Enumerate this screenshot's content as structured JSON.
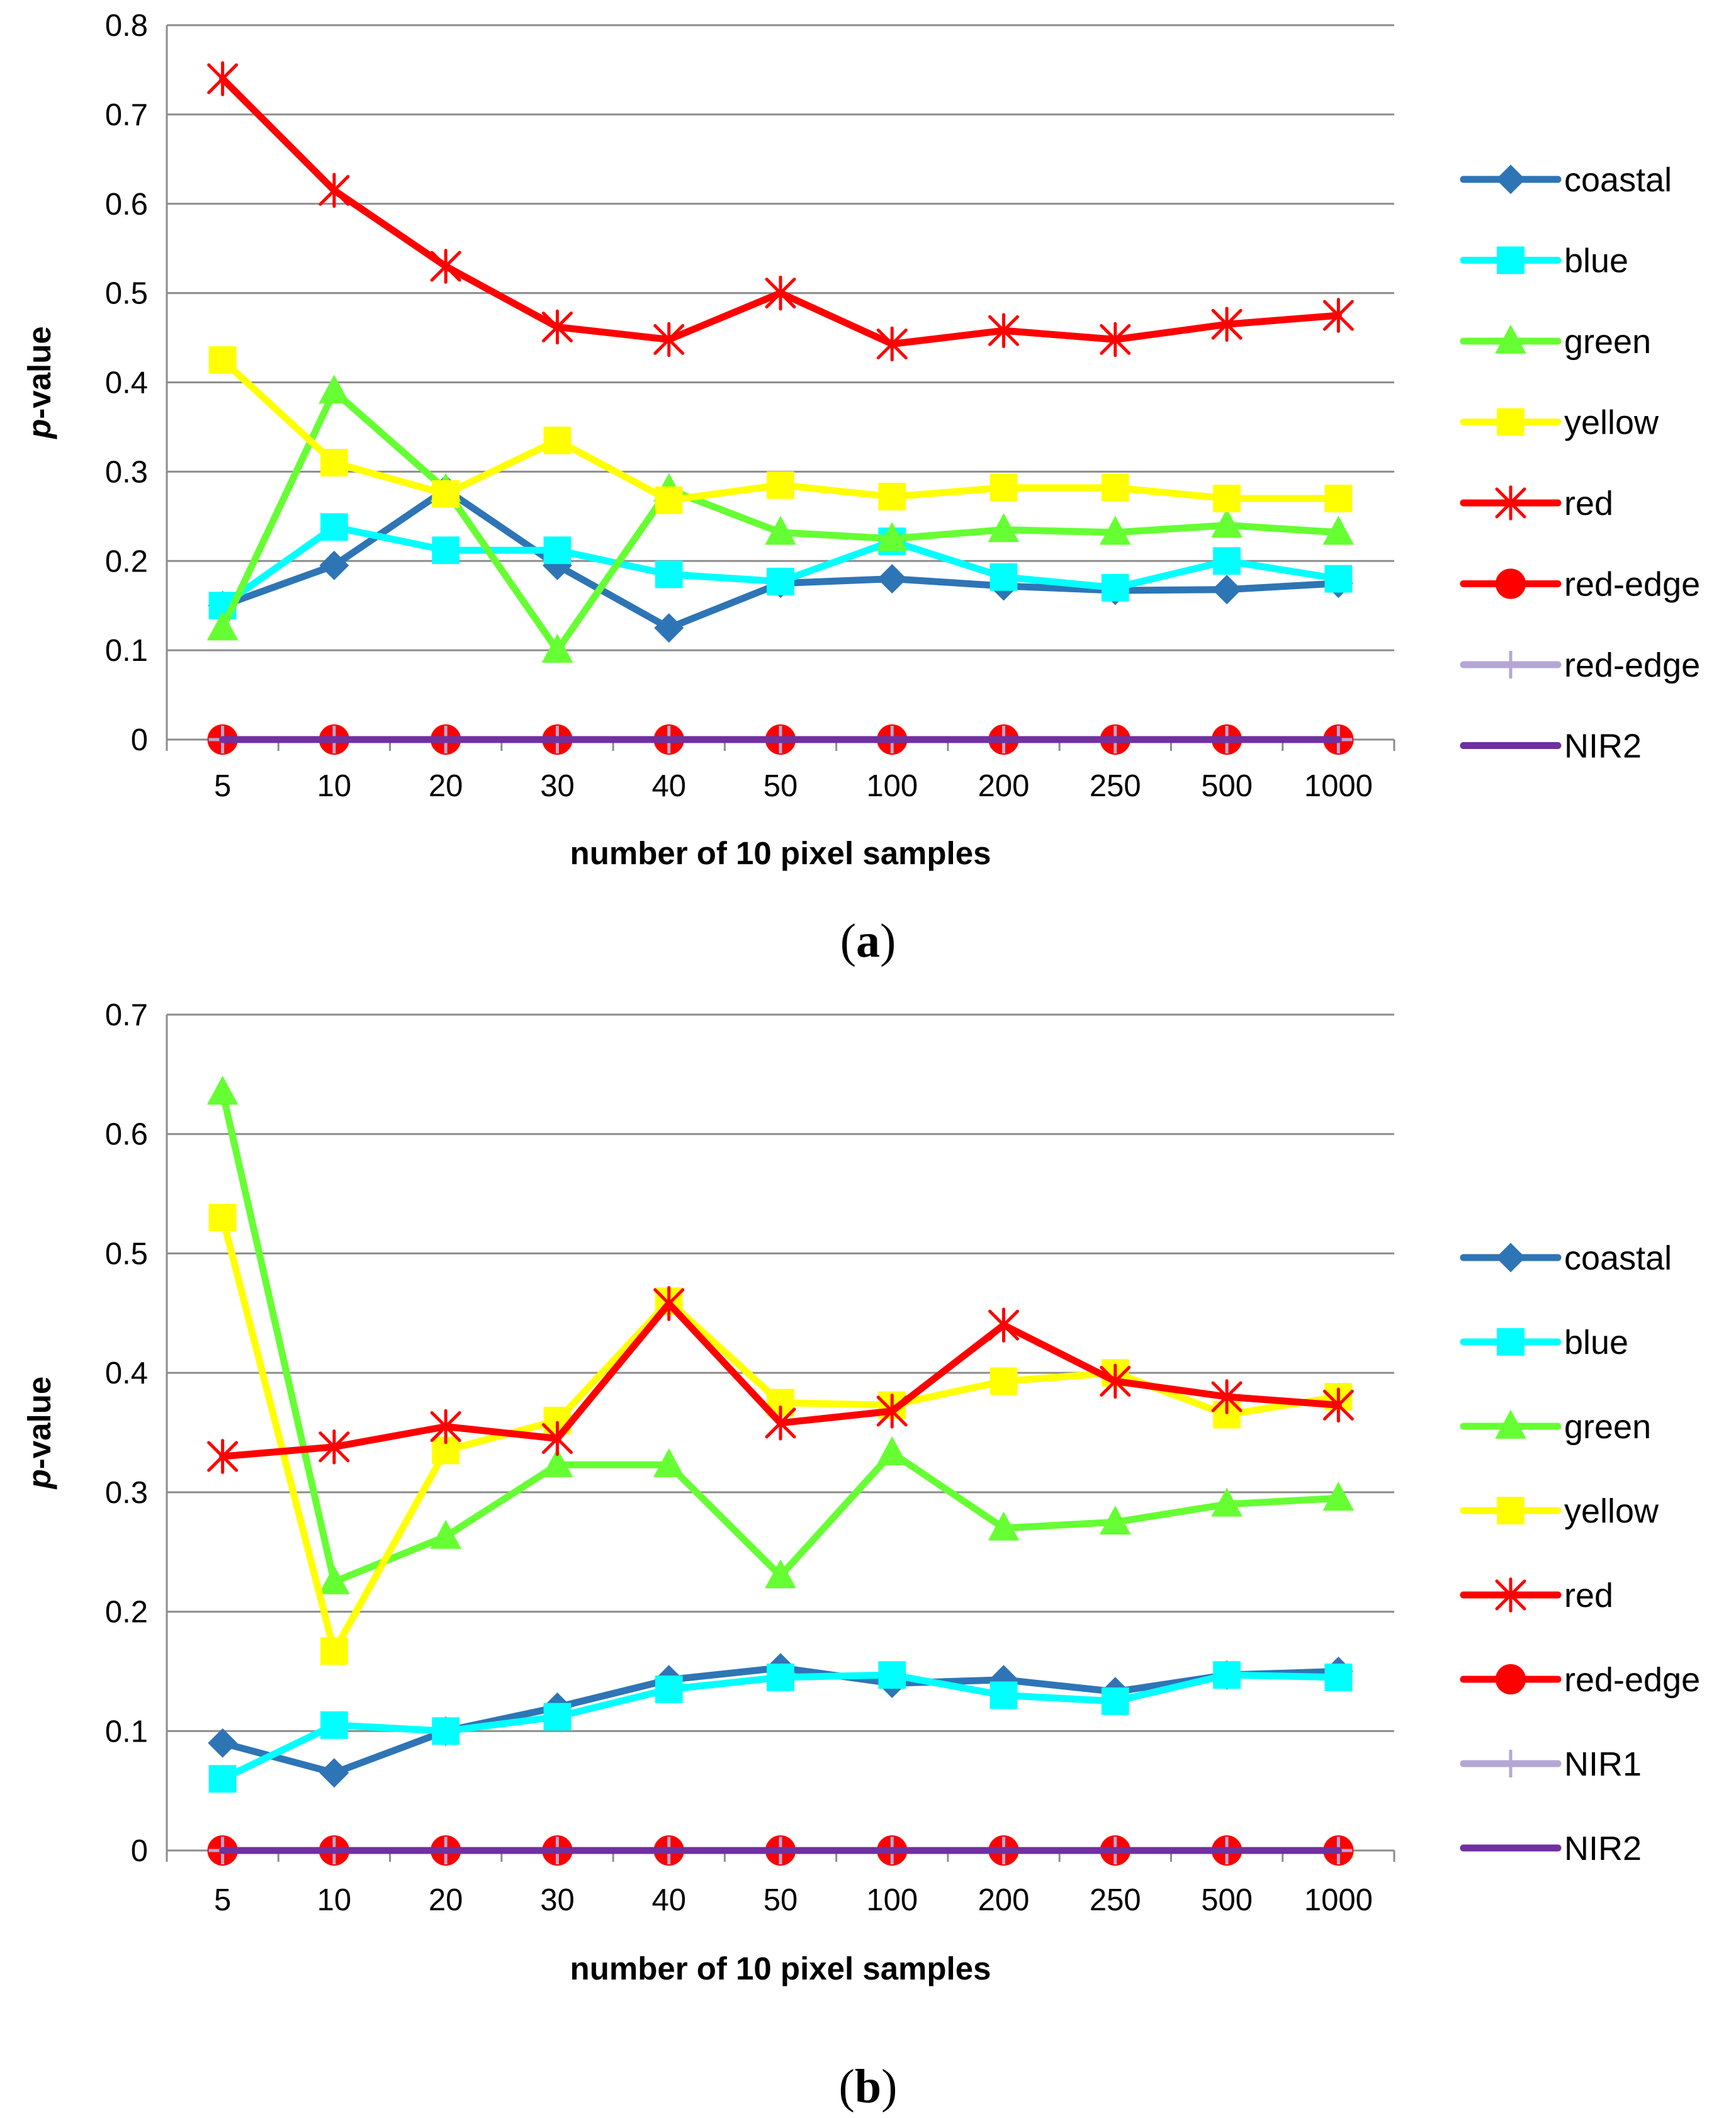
{
  "chart_data": [
    {
      "type": "line",
      "panel_label": "a",
      "xlabel": "number of 10 pixel samples",
      "ylabel_prefix": "p",
      "ylabel_suffix": "-value",
      "categories": [
        "5",
        "10",
        "20",
        "30",
        "40",
        "50",
        "100",
        "200",
        "250",
        "500",
        "1000"
      ],
      "ylim": [
        0,
        0.8
      ],
      "yticks": [
        "0",
        "0.1",
        "0.2",
        "0.3",
        "0.4",
        "0.5",
        "0.6",
        "0.7",
        "0.8"
      ],
      "grid": true,
      "legend": "right",
      "series": [
        {
          "name": "coastal",
          "color": "#2E75B6",
          "marker": "diamond",
          "values": [
            0.15,
            0.195,
            0.28,
            0.195,
            0.125,
            0.175,
            0.18,
            0.172,
            0.167,
            0.168,
            0.175
          ]
        },
        {
          "name": "blue",
          "color": "#00FFFF",
          "marker": "square",
          "values": [
            0.15,
            0.238,
            0.212,
            0.212,
            0.185,
            0.177,
            0.222,
            0.182,
            0.17,
            0.2,
            0.18
          ]
        },
        {
          "name": "green",
          "color": "#66FF33",
          "marker": "triangle",
          "values": [
            0.125,
            0.39,
            0.28,
            0.1,
            0.28,
            0.232,
            0.225,
            0.235,
            0.232,
            0.24,
            0.232
          ]
        },
        {
          "name": "yellow",
          "color": "#FFFF00",
          "marker": "square",
          "values": [
            0.425,
            0.31,
            0.275,
            0.335,
            0.268,
            0.285,
            0.272,
            0.282,
            0.282,
            0.27,
            0.27
          ]
        },
        {
          "name": "red",
          "color": "#FF0000",
          "marker": "star",
          "values": [
            0.74,
            0.615,
            0.53,
            0.462,
            0.448,
            0.5,
            0.443,
            0.458,
            0.448,
            0.465,
            0.475
          ]
        },
        {
          "name": "red-edge",
          "color": "#FF0000",
          "marker": "circle",
          "values": [
            0,
            0,
            0,
            0,
            0,
            0,
            0,
            0,
            0,
            0,
            0
          ]
        },
        {
          "name": "red-edge",
          "color": "#B4A7D6",
          "marker": "plus",
          "values": [
            0,
            0,
            0,
            0,
            0,
            0,
            0,
            0,
            0,
            0,
            0
          ]
        },
        {
          "name": "NIR2",
          "color": "#7030A0",
          "marker": "none",
          "values": [
            0,
            0,
            0,
            0,
            0,
            0,
            0,
            0,
            0,
            0,
            0
          ]
        }
      ]
    },
    {
      "type": "line",
      "panel_label": "b",
      "xlabel": "number of 10 pixel samples",
      "ylabel_prefix": "p",
      "ylabel_suffix": "-value",
      "categories": [
        "5",
        "10",
        "20",
        "30",
        "40",
        "50",
        "100",
        "200",
        "250",
        "500",
        "1000"
      ],
      "ylim": [
        0,
        0.7
      ],
      "yticks": [
        "0",
        "0.1",
        "0.2",
        "0.3",
        "0.4",
        "0.5",
        "0.6",
        "0.7"
      ],
      "grid": true,
      "legend": "right",
      "series": [
        {
          "name": "coastal",
          "color": "#2E75B6",
          "marker": "diamond",
          "values": [
            0.09,
            0.065,
            0.1,
            0.12,
            0.143,
            0.153,
            0.14,
            0.143,
            0.133,
            0.147,
            0.15
          ]
        },
        {
          "name": "blue",
          "color": "#00FFFF",
          "marker": "square",
          "values": [
            0.06,
            0.105,
            0.1,
            0.112,
            0.135,
            0.145,
            0.147,
            0.13,
            0.125,
            0.147,
            0.145
          ]
        },
        {
          "name": "green",
          "color": "#66FF33",
          "marker": "triangle",
          "values": [
            0.635,
            0.225,
            0.263,
            0.323,
            0.323,
            0.23,
            0.333,
            0.27,
            0.275,
            0.29,
            0.295
          ]
        },
        {
          "name": "yellow",
          "color": "#FFFF00",
          "marker": "square",
          "values": [
            0.53,
            0.167,
            0.335,
            0.36,
            0.46,
            0.375,
            0.373,
            0.393,
            0.4,
            0.365,
            0.38
          ]
        },
        {
          "name": "red",
          "color": "#FF0000",
          "marker": "star",
          "values": [
            0.33,
            0.338,
            0.355,
            0.345,
            0.458,
            0.358,
            0.368,
            0.44,
            0.393,
            0.38,
            0.373
          ]
        },
        {
          "name": "red-edge",
          "color": "#FF0000",
          "marker": "circle",
          "values": [
            0,
            0,
            0,
            0,
            0,
            0,
            0,
            0,
            0,
            0,
            0
          ]
        },
        {
          "name": "NIR1",
          "color": "#B4A7D6",
          "marker": "plus",
          "values": [
            0,
            0,
            0,
            0,
            0,
            0,
            0,
            0,
            0,
            0,
            0
          ]
        },
        {
          "name": "NIR2",
          "color": "#7030A0",
          "marker": "none",
          "values": [
            0,
            0,
            0,
            0,
            0,
            0,
            0,
            0,
            0,
            0,
            0
          ]
        }
      ]
    }
  ]
}
